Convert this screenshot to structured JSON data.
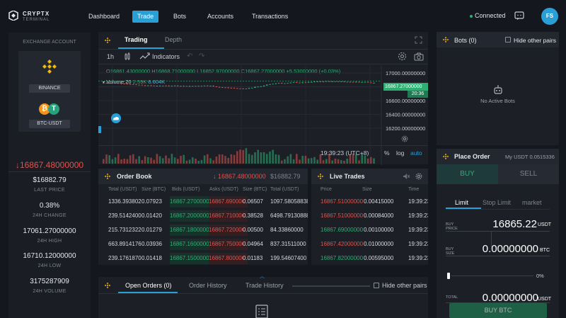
{
  "app": {
    "logo_line1": "CRYPTX",
    "logo_line2": "TERMINAL"
  },
  "nav": {
    "items": [
      "Dashboard",
      "Trade",
      "Bots",
      "Accounts",
      "Transactions"
    ],
    "active": "Trade"
  },
  "status": {
    "connected": "Connected",
    "avatar": "FS"
  },
  "sidebar": {
    "header": "EXCHANGE ACCOUNT",
    "exchange": "BINANCE",
    "pair": "BTC-USDT",
    "price": "16867.48000000",
    "stats": [
      {
        "value": "$16882.79",
        "label": "LAST PRICE"
      },
      {
        "value": "0.38%",
        "label": "24H CHANGE"
      },
      {
        "value": "17061.27000000",
        "label": "24H HIGH"
      },
      {
        "value": "16710.12000000",
        "label": "24H LOW"
      },
      {
        "value": "3175287909",
        "label": "24H VOLUME"
      }
    ]
  },
  "chart_panel": {
    "tabs": [
      "Trading",
      "Depth"
    ],
    "interval": "1h",
    "indicators_label": "Indicators",
    "ohlc": {
      "o": "16861.43000000",
      "h": "16868.71000000",
      "l": "16852.97000000",
      "c": "16867.27000000",
      "chg": "+5.53000000 (+0.03%)"
    },
    "volume_label": "Volume 20",
    "volume_v1": "2.59K",
    "volume_v2": "6.604K",
    "price_tag": "16867.27000000",
    "countdown": "20:36",
    "time": "19:39:23 (UTC+8)",
    "scale_opts": [
      "%",
      "log",
      "auto"
    ]
  },
  "chart_data": {
    "type": "candlestick",
    "y_ticks": [
      "17000.00000000",
      "16800.00000000",
      "16600.00000000",
      "16400.00000000",
      "16200.00000000"
    ],
    "x_ticks": [
      "18",
      "19",
      "20",
      "21",
      "22"
    ],
    "ylim": [
      16200,
      17000
    ],
    "last_price": 16867.27
  },
  "orderbook": {
    "title": "Order Book",
    "price": "16867.48000000",
    "usd": "$16882.79",
    "headers": [
      "Total (USDT)",
      "Size (BTC)",
      "Bids (USDT)",
      "Asks (USDT)",
      "Size (BTC)",
      "Total (USDT)"
    ],
    "rows": [
      [
        "1336.39380211",
        "0.07923",
        "16867.27000000",
        "16867.69000000",
        "0.06507",
        "1097.58058838"
      ],
      [
        "239.51424000",
        "0.01420",
        "16867.20000000",
        "16867.71000000",
        "0.38528",
        "6498.79130888"
      ],
      [
        "215.73123220",
        "0.01279",
        "16867.18000000",
        "16867.72000000",
        "0.00500",
        "84.33860000"
      ],
      [
        "663.89141760",
        "0.03936",
        "16867.16000000",
        "16867.75000000",
        "0.04964",
        "837.31511000"
      ],
      [
        "239.17618700",
        "0.01418",
        "16867.15000000",
        "16867.80000000",
        "0.01183",
        "199.54607400"
      ]
    ]
  },
  "live_trades": {
    "title": "Live Trades",
    "headers": [
      "Price",
      "Size",
      "Time"
    ],
    "rows": [
      {
        "price": "16867.51000000",
        "size": "0.00415000",
        "time": "19:39:23",
        "side": "sell"
      },
      {
        "price": "16867.51000000",
        "size": "0.00084000",
        "time": "19:39:23",
        "side": "sell"
      },
      {
        "price": "16867.69000000",
        "size": "0.00100000",
        "time": "19:39:23",
        "side": "buy"
      },
      {
        "price": "16867.42000000",
        "size": "0.01000000",
        "time": "19:39:23",
        "side": "sell"
      },
      {
        "price": "16867.82000000",
        "size": "0.00595000",
        "time": "19:39:23",
        "side": "buy"
      }
    ]
  },
  "bottom_tabs": {
    "items": [
      "Open Orders (0)",
      "Order History",
      "Trade History"
    ],
    "hide_label": "Hide other pairs"
  },
  "bots": {
    "title": "Bots (0)",
    "hide_label": "Hide other pairs",
    "empty": "No Active Bots"
  },
  "place_order": {
    "title": "Place Order",
    "balance": "My USDT 0.0515336",
    "buy": "BUY",
    "sell": "SELL",
    "types": [
      "Limit",
      "Stop Limit",
      "market"
    ],
    "price_label1": "BUY",
    "price_label2": "PRICE",
    "price_value": "16865.22",
    "price_unit": "USDT",
    "size_label1": "BUY",
    "size_label2": "SIZE",
    "size_value": "0.00000000",
    "size_unit": "BTC",
    "slider_pct": "0%",
    "total_label": "TOTAL",
    "total_value": "0.00000000",
    "total_unit": "USDT",
    "buy_button": "BUY BTC"
  },
  "colors": {
    "accent": "#2a9fd6",
    "green": "#2fae74",
    "red": "#e0534d",
    "binance": "#f0b90b"
  }
}
